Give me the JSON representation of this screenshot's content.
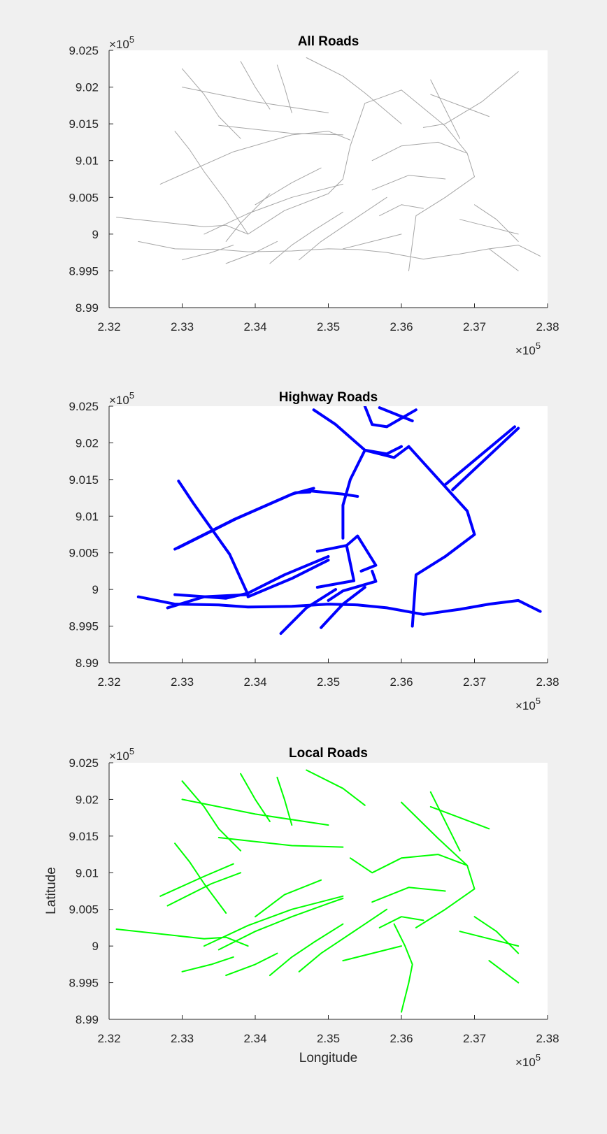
{
  "chart_data": [
    {
      "type": "line",
      "title": "All Roads",
      "xlabel": "",
      "ylabel": "",
      "xlim": [
        2.32,
        2.38
      ],
      "ylim": [
        8.99,
        9.025
      ],
      "x_multiplier": "×10",
      "x_exponent": "5",
      "y_multiplier": "×10",
      "y_exponent": "5",
      "x_ticks": [
        "2.32",
        "2.33",
        "2.34",
        "2.35",
        "2.36",
        "2.37",
        "2.38"
      ],
      "y_ticks": [
        "8.99",
        "8.995",
        "9",
        "9.005",
        "9.01",
        "9.015",
        "9.02",
        "9.025"
      ],
      "color": "#a6a6a6",
      "series": [
        {
          "x": [
            2.321,
            2.333,
            2.336,
            2.339
          ],
          "y": [
            9.0023,
            9.001,
            9.0012,
            9.0
          ]
        },
        {
          "x": [
            2.324,
            2.329,
            2.335,
            2.339,
            2.345,
            2.35,
            2.354,
            2.358,
            2.363,
            2.368,
            2.372,
            2.376,
            2.379
          ],
          "y": [
            8.999,
            8.998,
            8.9979,
            8.9976,
            8.9977,
            8.998,
            8.9979,
            8.9975,
            8.9966,
            8.9973,
            8.998,
            8.9985,
            8.997
          ]
        },
        {
          "x": [
            2.333,
            2.339,
            2.345,
            2.352
          ],
          "y": [
            9.0,
            9.0028,
            9.005,
            9.0068
          ]
        },
        {
          "x": [
            2.339,
            2.344,
            2.35,
            2.352,
            2.353
          ],
          "y": [
            9.0,
            9.0032,
            9.0055,
            9.0075,
            9.012
          ]
        },
        {
          "x": [
            2.353,
            2.355,
            2.357,
            2.36
          ],
          "y": [
            9.012,
            9.0178,
            9.0185,
            9.0196
          ]
        },
        {
          "x": [
            2.36,
            2.366,
            2.369,
            2.37,
            2.366,
            2.362,
            2.361
          ],
          "y": [
            9.0196,
            9.0147,
            9.011,
            9.0078,
            9.005,
            9.0025,
            8.995
          ]
        },
        {
          "x": [
            2.327,
            2.337,
            2.345,
            2.35,
            2.353
          ],
          "y": [
            9.0068,
            9.0112,
            9.0135,
            9.014,
            9.0128
          ]
        },
        {
          "x": [
            2.335,
            2.345,
            2.352
          ],
          "y": [
            9.0148,
            9.0137,
            9.0135
          ]
        },
        {
          "x": [
            2.347,
            2.352,
            2.355,
            2.36
          ],
          "y": [
            9.024,
            9.0215,
            9.0192,
            9.015
          ]
        },
        {
          "x": [
            2.363,
            2.366,
            2.371,
            2.376
          ],
          "y": [
            9.0145,
            9.015,
            9.018,
            9.0221
          ]
        },
        {
          "x": [
            2.329,
            2.331,
            2.333,
            2.336,
            2.339
          ],
          "y": [
            9.014,
            9.0115,
            9.0085,
            9.0045,
            9.0
          ]
        },
        {
          "x": [
            2.336,
            2.338,
            2.34,
            2.342
          ],
          "y": [
            8.999,
            9.0015,
            9.0035,
            9.0055
          ]
        },
        {
          "x": [
            2.34,
            2.345,
            2.349
          ],
          "y": [
            9.004,
            9.007,
            9.009
          ]
        },
        {
          "x": [
            2.342,
            2.345,
            2.348,
            2.352
          ],
          "y": [
            8.996,
            8.9985,
            9.0005,
            9.003
          ]
        },
        {
          "x": [
            2.346,
            2.349,
            2.352,
            2.355,
            2.358
          ],
          "y": [
            8.9965,
            8.999,
            9.001,
            9.003,
            9.005
          ]
        },
        {
          "x": [
            2.33,
            2.34,
            2.35
          ],
          "y": [
            9.02,
            9.018,
            9.0165
          ]
        },
        {
          "x": [
            2.33,
            2.333,
            2.335,
            2.338
          ],
          "y": [
            9.0225,
            9.019,
            9.016,
            9.013
          ]
        },
        {
          "x": [
            2.338,
            2.34,
            2.342
          ],
          "y": [
            9.0235,
            9.02,
            9.017
          ]
        },
        {
          "x": [
            2.343,
            2.344,
            2.345
          ],
          "y": [
            9.023,
            9.02,
            9.0165
          ]
        },
        {
          "x": [
            2.356,
            2.36,
            2.365,
            2.369
          ],
          "y": [
            9.01,
            9.012,
            9.0125,
            9.011
          ]
        },
        {
          "x": [
            2.356,
            2.361,
            2.366
          ],
          "y": [
            9.006,
            9.008,
            9.0075
          ]
        },
        {
          "x": [
            2.357,
            2.36,
            2.363
          ],
          "y": [
            9.0025,
            9.004,
            9.0035
          ]
        },
        {
          "x": [
            2.364,
            2.368,
            2.372
          ],
          "y": [
            9.019,
            9.0175,
            9.016
          ]
        },
        {
          "x": [
            2.364,
            2.366,
            2.368
          ],
          "y": [
            9.021,
            9.017,
            9.013
          ]
        },
        {
          "x": [
            2.368,
            2.372,
            2.376
          ],
          "y": [
            9.002,
            9.001,
            9.0
          ]
        },
        {
          "x": [
            2.37,
            2.373,
            2.376
          ],
          "y": [
            9.004,
            9.002,
            8.999
          ]
        },
        {
          "x": [
            2.372,
            2.374,
            2.376
          ],
          "y": [
            8.998,
            8.9965,
            8.995
          ]
        },
        {
          "x": [
            2.352,
            2.356,
            2.36
          ],
          "y": [
            8.998,
            8.999,
            9.0
          ]
        },
        {
          "x": [
            2.336,
            2.34,
            2.343
          ],
          "y": [
            8.996,
            8.9975,
            8.999
          ]
        },
        {
          "x": [
            2.33,
            2.334,
            2.337
          ],
          "y": [
            8.9965,
            8.9975,
            8.9985
          ]
        }
      ]
    },
    {
      "type": "line",
      "title": "Highway Roads",
      "xlabel": "",
      "ylabel": "",
      "xlim": [
        2.32,
        2.38
      ],
      "ylim": [
        8.99,
        9.025
      ],
      "x_multiplier": "×10",
      "x_exponent": "5",
      "y_multiplier": "×10",
      "y_exponent": "5",
      "x_ticks": [
        "2.32",
        "2.33",
        "2.34",
        "2.35",
        "2.36",
        "2.37",
        "2.38"
      ],
      "y_ticks": [
        "8.99",
        "8.995",
        "9",
        "9.005",
        "9.01",
        "9.015",
        "9.02",
        "9.025"
      ],
      "color": "#0000ff",
      "series": [
        {
          "x": [
            2.324,
            2.329,
            2.335,
            2.339,
            2.345,
            2.35,
            2.354,
            2.358,
            2.363,
            2.368,
            2.372,
            2.376,
            2.379
          ],
          "y": [
            8.999,
            8.998,
            8.9979,
            8.9976,
            8.9977,
            8.998,
            8.9979,
            8.9975,
            8.9966,
            8.9973,
            8.998,
            8.9985,
            8.997
          ]
        },
        {
          "x": [
            2.328,
            2.333,
            2.339
          ],
          "y": [
            8.9975,
            8.999,
            8.9993
          ]
        },
        {
          "x": [
            2.329,
            2.336,
            2.339,
            2.344,
            2.35
          ],
          "y": [
            8.9993,
            8.9988,
            8.9995,
            9.002,
            9.0045
          ]
        },
        {
          "x": [
            2.339,
            2.345,
            2.35
          ],
          "y": [
            8.999,
            9.0015,
            9.004
          ]
        },
        {
          "x": [
            2.3295,
            2.3315,
            2.3335,
            2.3365,
            2.339
          ],
          "y": [
            9.0148,
            9.0118,
            9.009,
            9.0048,
            8.9993
          ]
        },
        {
          "x": [
            2.329,
            2.337,
            2.345,
            2.348
          ],
          "y": [
            9.0055,
            9.0095,
            9.013,
            9.0138
          ]
        },
        {
          "x": [
            2.3295,
            2.3375,
            2.3455,
            2.3475
          ],
          "y": [
            9.0057,
            9.0097,
            9.0132,
            9.0133
          ]
        },
        {
          "x": [
            2.347,
            2.352,
            2.354
          ],
          "y": [
            9.0135,
            9.013,
            9.0127
          ]
        },
        {
          "x": [
            2.352,
            2.352,
            2.353,
            2.355,
            2.359,
            2.361
          ],
          "y": [
            9.007,
            9.0115,
            9.015,
            9.019,
            9.018,
            9.0195
          ]
        },
        {
          "x": [
            2.348,
            2.351,
            2.355,
            2.358,
            2.36
          ],
          "y": [
            9.0245,
            9.0225,
            9.019,
            9.0185,
            9.0195
          ]
        },
        {
          "x": [
            2.361,
            2.366,
            2.369,
            2.37,
            2.366,
            2.362,
            2.3615
          ],
          "y": [
            9.0195,
            9.014,
            9.0107,
            9.0075,
            9.0045,
            9.002,
            8.995
          ]
        },
        {
          "x": [
            2.366,
            2.3755
          ],
          "y": [
            9.0143,
            9.0222
          ]
        },
        {
          "x": [
            2.367,
            2.376
          ],
          "y": [
            9.0136,
            9.022
          ]
        },
        {
          "x": [
            2.355,
            2.356,
            2.358,
            2.362
          ],
          "y": [
            9.025,
            9.0225,
            9.0222,
            9.0245
          ]
        },
        {
          "x": [
            2.357,
            2.3615
          ],
          "y": [
            9.0248,
            9.023
          ]
        },
        {
          "x": [
            2.3485,
            2.3525,
            2.3535,
            2.3485
          ],
          "y": [
            9.0052,
            9.006,
            9.0012,
            9.0003
          ]
        },
        {
          "x": [
            2.3525,
            2.354,
            2.3565,
            2.3545
          ],
          "y": [
            9.006,
            9.0073,
            9.0033,
            9.0025
          ]
        },
        {
          "x": [
            2.35,
            2.352,
            2.3565,
            2.356
          ],
          "y": [
            8.9985,
            8.9998,
            9.0011,
            9.0025
          ]
        },
        {
          "x": [
            2.3435,
            2.347,
            2.351
          ],
          "y": [
            8.994,
            8.9975,
            9.0
          ]
        },
        {
          "x": [
            2.349,
            2.352,
            2.355
          ],
          "y": [
            8.9948,
            8.998,
            9.0003
          ]
        }
      ]
    },
    {
      "type": "line",
      "title": "Local Roads",
      "xlabel": "Longitude",
      "ylabel": "Latitude",
      "xlim": [
        2.32,
        2.38
      ],
      "ylim": [
        8.99,
        9.025
      ],
      "x_multiplier": "×10",
      "x_exponent": "5",
      "y_multiplier": "×10",
      "y_exponent": "5",
      "x_ticks": [
        "2.32",
        "2.33",
        "2.34",
        "2.35",
        "2.36",
        "2.37",
        "2.38"
      ],
      "y_ticks": [
        "8.99",
        "8.995",
        "9",
        "9.005",
        "9.01",
        "9.015",
        "9.02",
        "9.025"
      ],
      "color": "#00ff00",
      "series": [
        {
          "x": [
            2.321,
            2.333,
            2.336,
            2.339
          ],
          "y": [
            9.0023,
            9.001,
            9.0012,
            9.0
          ]
        },
        {
          "x": [
            2.333,
            2.339,
            2.345,
            2.352
          ],
          "y": [
            9.0,
            9.0028,
            9.005,
            9.0068
          ]
        },
        {
          "x": [
            2.335,
            2.34,
            2.345,
            2.35,
            2.352
          ],
          "y": [
            8.9995,
            9.002,
            9.004,
            9.0058,
            9.0065
          ]
        },
        {
          "x": [
            2.327,
            2.333,
            2.337
          ],
          "y": [
            9.0068,
            9.0095,
            9.0112
          ]
        },
        {
          "x": [
            2.328,
            2.334,
            2.338
          ],
          "y": [
            9.0055,
            9.0085,
            9.01
          ]
        },
        {
          "x": [
            2.329,
            2.331,
            2.333,
            2.336
          ],
          "y": [
            9.014,
            9.0115,
            9.0085,
            9.0045
          ]
        },
        {
          "x": [
            2.33,
            2.34,
            2.35
          ],
          "y": [
            9.02,
            9.018,
            9.0165
          ]
        },
        {
          "x": [
            2.33,
            2.333,
            2.335,
            2.338
          ],
          "y": [
            9.0225,
            9.019,
            9.016,
            9.013
          ]
        },
        {
          "x": [
            2.338,
            2.34,
            2.342
          ],
          "y": [
            9.0235,
            9.02,
            9.017
          ]
        },
        {
          "x": [
            2.343,
            2.344,
            2.345
          ],
          "y": [
            9.023,
            9.02,
            9.0165
          ]
        },
        {
          "x": [
            2.335,
            2.345,
            2.352
          ],
          "y": [
            9.0148,
            9.0137,
            9.0135
          ]
        },
        {
          "x": [
            2.347,
            2.352,
            2.355
          ],
          "y": [
            9.024,
            9.0215,
            9.0192
          ]
        },
        {
          "x": [
            2.353,
            2.356,
            2.36,
            2.365,
            2.369
          ],
          "y": [
            9.012,
            9.01,
            9.012,
            9.0125,
            9.011
          ]
        },
        {
          "x": [
            2.356,
            2.361,
            2.366
          ],
          "y": [
            9.006,
            9.008,
            9.0075
          ]
        },
        {
          "x": [
            2.357,
            2.36,
            2.363
          ],
          "y": [
            9.0025,
            9.004,
            9.0035
          ]
        },
        {
          "x": [
            2.364,
            2.368,
            2.372
          ],
          "y": [
            9.019,
            9.0175,
            9.016
          ]
        },
        {
          "x": [
            2.364,
            2.366,
            2.368
          ],
          "y": [
            9.021,
            9.017,
            9.013
          ]
        },
        {
          "x": [
            2.36,
            2.365,
            2.369,
            2.37,
            2.366,
            2.362
          ],
          "y": [
            9.0196,
            9.0147,
            9.011,
            9.0078,
            9.005,
            9.0025
          ]
        },
        {
          "x": [
            2.368,
            2.372,
            2.376
          ],
          "y": [
            9.002,
            9.001,
            9.0
          ]
        },
        {
          "x": [
            2.37,
            2.373,
            2.376
          ],
          "y": [
            9.004,
            9.002,
            8.999
          ]
        },
        {
          "x": [
            2.372,
            2.374,
            2.376
          ],
          "y": [
            8.998,
            8.9965,
            8.995
          ]
        },
        {
          "x": [
            2.352,
            2.356,
            2.36
          ],
          "y": [
            8.998,
            8.999,
            9.0
          ]
        },
        {
          "x": [
            2.336,
            2.34,
            2.343
          ],
          "y": [
            8.996,
            8.9975,
            8.999
          ]
        },
        {
          "x": [
            2.33,
            2.334,
            2.337
          ],
          "y": [
            8.9965,
            8.9975,
            8.9985
          ]
        },
        {
          "x": [
            2.342,
            2.345,
            2.348,
            2.352
          ],
          "y": [
            8.996,
            8.9985,
            9.0005,
            9.003
          ]
        },
        {
          "x": [
            2.346,
            2.349,
            2.352,
            2.355,
            2.358
          ],
          "y": [
            8.9965,
            8.999,
            9.001,
            9.003,
            9.005
          ]
        },
        {
          "x": [
            2.34,
            2.344,
            2.349
          ],
          "y": [
            9.004,
            9.007,
            9.009
          ]
        },
        {
          "x": [
            2.359,
            2.3605,
            2.3615,
            2.361,
            2.36
          ],
          "y": [
            9.003,
            9.0,
            8.9975,
            8.995,
            8.991
          ]
        }
      ]
    }
  ]
}
